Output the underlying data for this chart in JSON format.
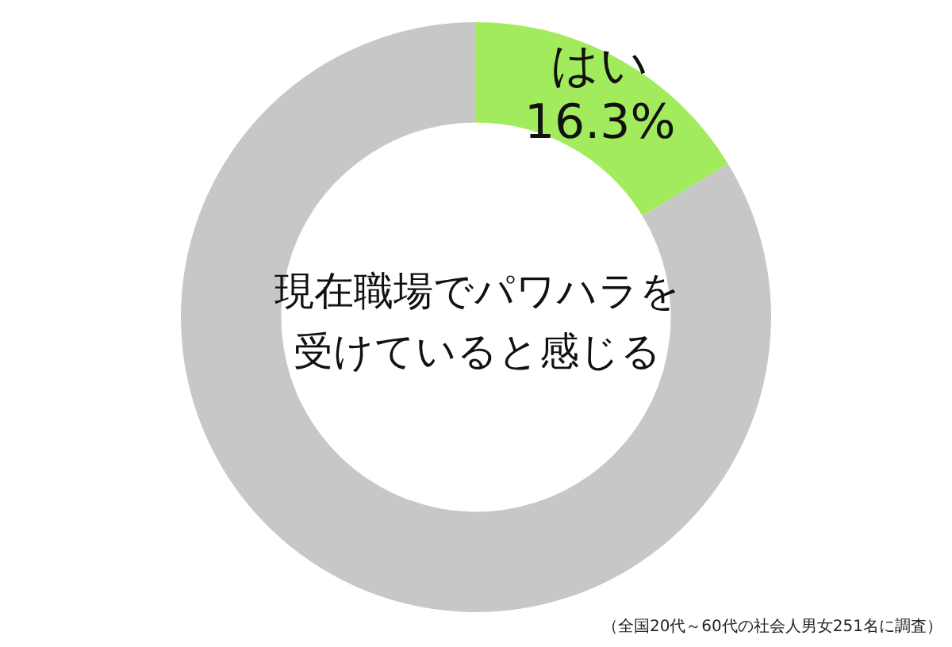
{
  "chart_data": {
    "type": "donut",
    "title": "現在職場でパワハラを受けていると感じる",
    "categories": [
      "はい",
      null
    ],
    "values": [
      16.3,
      83.7
    ],
    "value_labels": [
      "16.3%",
      null
    ],
    "colors": [
      "#a2eb5c",
      "#c7c7c7"
    ],
    "legend": false,
    "annotations": [
      "（全国20代～60代の社会人男女251名に調査）"
    ]
  }
}
